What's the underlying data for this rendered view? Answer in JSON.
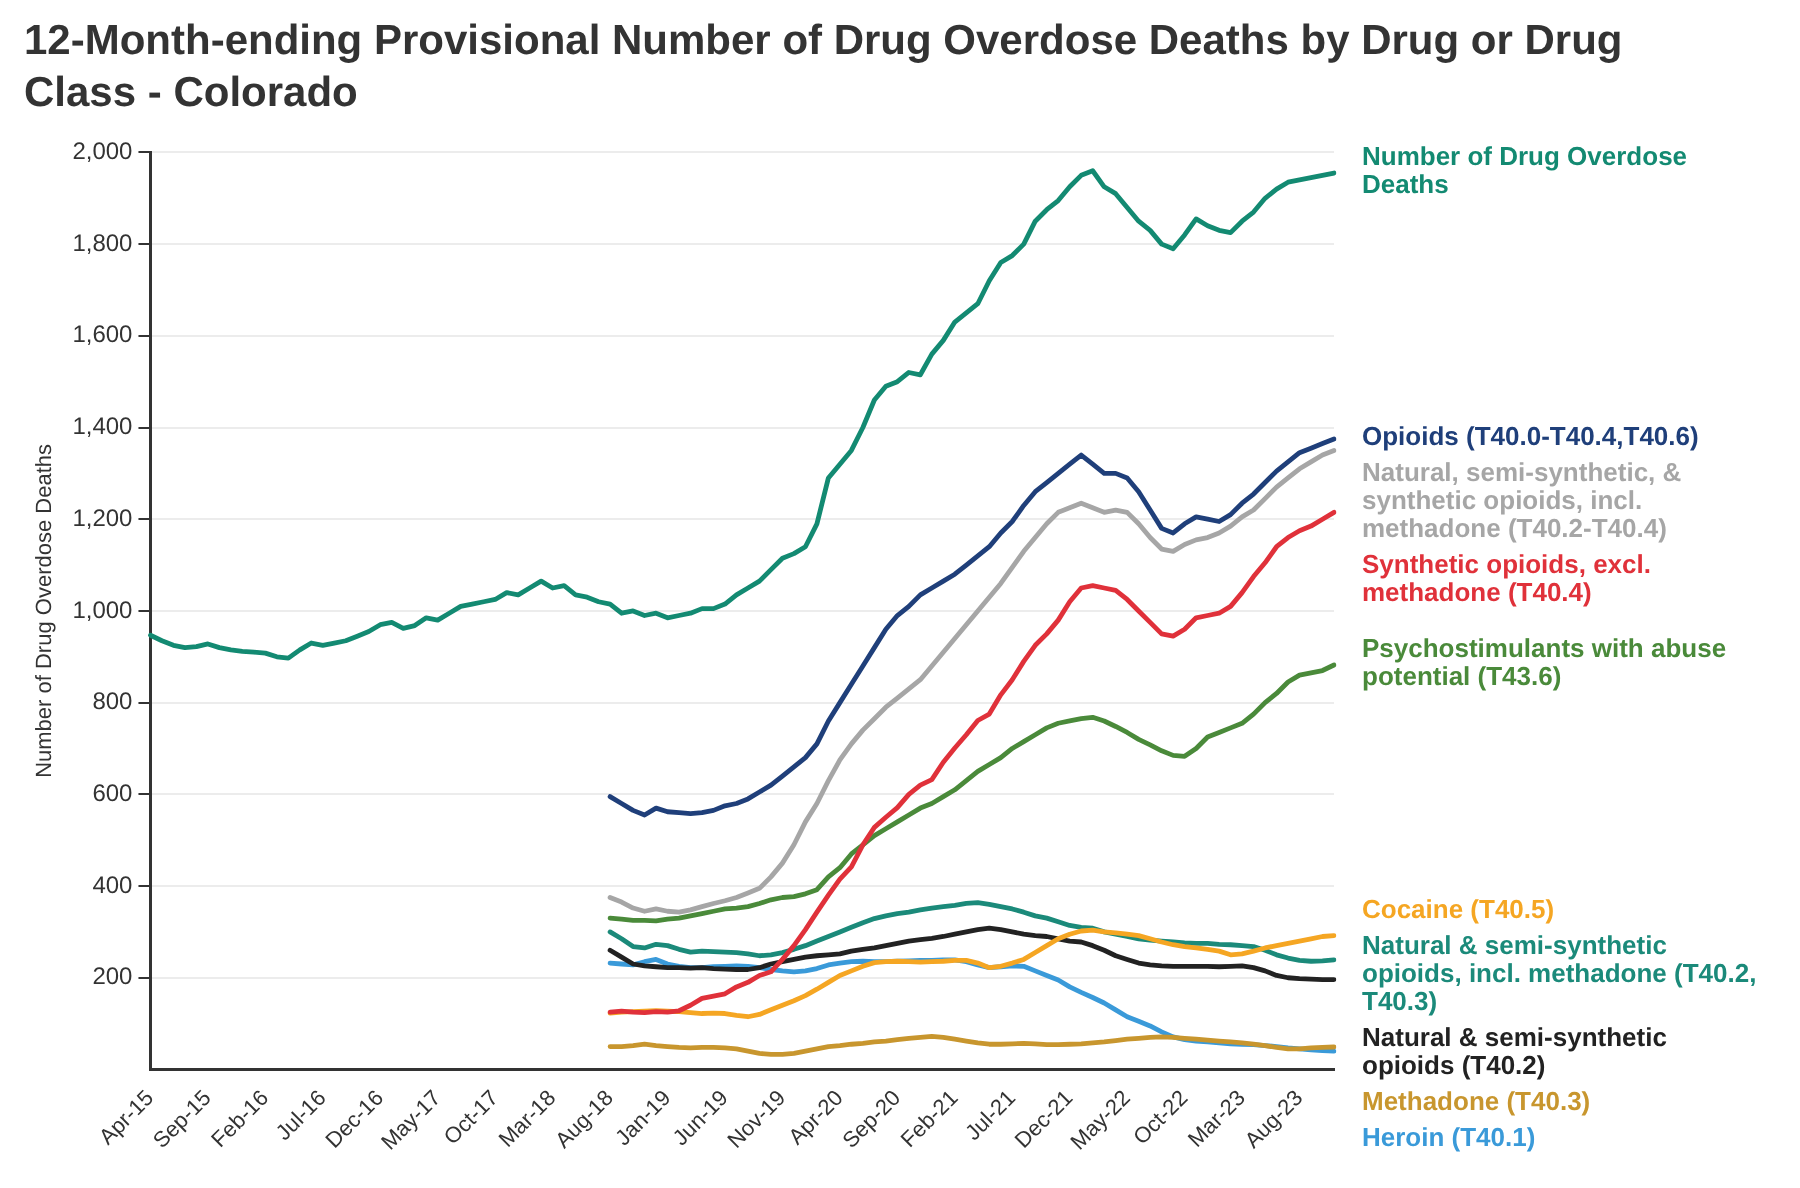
{
  "chart_data": {
    "type": "line",
    "title": "12-Month-ending Provisional Number of Drug Overdose Deaths by Drug or Drug Class - Colorado",
    "ylabel": "Number of Drug Overdose Deaths",
    "categories": [
      "Apr-15",
      null,
      null,
      null,
      null,
      "Sep-15",
      null,
      null,
      null,
      null,
      "Feb-16",
      null,
      null,
      null,
      null,
      "Jul-16",
      null,
      null,
      null,
      null,
      "Dec-16",
      null,
      null,
      null,
      null,
      "May-17",
      null,
      null,
      null,
      null,
      "Oct-17",
      null,
      null,
      null,
      null,
      "Mar-18",
      null,
      null,
      null,
      null,
      "Aug-18",
      null,
      null,
      null,
      null,
      "Jan-19",
      null,
      null,
      null,
      null,
      "Jun-19",
      null,
      null,
      null,
      null,
      "Nov-19",
      null,
      null,
      null,
      null,
      "Apr-20",
      null,
      null,
      null,
      null,
      "Sep-20",
      null,
      null,
      null,
      null,
      "Feb-21",
      null,
      null,
      null,
      null,
      "Jul-21",
      null,
      null,
      null,
      null,
      "Dec-21",
      null,
      null,
      null,
      null,
      "May-22",
      null,
      null,
      null,
      null,
      "Oct-22",
      null,
      null,
      null,
      null,
      "Mar-23",
      null,
      null,
      null,
      null,
      "Aug-23",
      null,
      null,
      null
    ],
    "ylim": [
      0,
      2000
    ],
    "yticks": [
      200,
      400,
      600,
      800,
      {
        "value": 1000,
        "label": "1,000"
      },
      {
        "value": 1200,
        "label": "1,200"
      },
      {
        "value": 1400,
        "label": "1,400"
      },
      {
        "value": 1600,
        "label": "1,600"
      },
      {
        "value": 1800,
        "label": "1,800"
      },
      {
        "value": 2000,
        "label": "2,000"
      }
    ],
    "grid": "y",
    "legend": false,
    "marker": "none",
    "line_style": "solid",
    "series": [
      {
        "name": "Number of Drug Overdose Deaths",
        "color": "#138a72",
        "values": [
          947,
          935,
          925,
          920,
          922,
          928,
          920,
          915,
          912,
          910,
          908,
          900,
          897,
          915,
          930,
          925,
          930,
          935,
          945,
          955,
          970,
          975,
          962,
          968,
          985,
          980,
          995,
          1010,
          1015,
          1020,
          1025,
          1040,
          1035,
          1050,
          1065,
          1050,
          1055,
          1035,
          1030,
          1020,
          1015,
          995,
          1000,
          990,
          995,
          985,
          990,
          995,
          1005,
          1005,
          1015,
          1035,
          1050,
          1065,
          1090,
          1115,
          1125,
          1140,
          1190,
          1290,
          1320,
          1350,
          1400,
          1460,
          1490,
          1500,
          1520,
          1515,
          1560,
          1590,
          1630,
          1650,
          1670,
          1720,
          1760,
          1775,
          1800,
          1850,
          1875,
          1895,
          1925,
          1950,
          1960,
          1925,
          1910,
          1880,
          1850,
          1830,
          1800,
          1790,
          1820,
          1855,
          1840,
          1830,
          1825,
          1850,
          1870,
          1900,
          1920,
          1935,
          1940,
          1945,
          1950,
          1955
        ]
      },
      {
        "name": "Opioids (T40.0-T40.4,T40.6)",
        "color": "#1f3f7a",
        "values": [
          null,
          null,
          null,
          null,
          null,
          null,
          null,
          null,
          null,
          null,
          null,
          null,
          null,
          null,
          null,
          null,
          null,
          null,
          null,
          null,
          null,
          null,
          null,
          null,
          null,
          null,
          null,
          null,
          null,
          null,
          null,
          null,
          null,
          null,
          null,
          null,
          null,
          null,
          null,
          null,
          595,
          580,
          565,
          555,
          570,
          562,
          560,
          558,
          560,
          565,
          575,
          580,
          590,
          605,
          620,
          640,
          660,
          680,
          710,
          760,
          800,
          840,
          880,
          920,
          960,
          990,
          1010,
          1035,
          1050,
          1065,
          1080,
          1100,
          1120,
          1140,
          1170,
          1195,
          1230,
          1260,
          1280,
          1300,
          1320,
          1340,
          1320,
          1300,
          1300,
          1290,
          1260,
          1220,
          1180,
          1170,
          1190,
          1205,
          1200,
          1195,
          1210,
          1235,
          1255,
          1280,
          1305,
          1325,
          1345,
          1355,
          1365,
          1375
        ]
      },
      {
        "name": "Natural, semi-synthetic, & synthetic opioids, incl. methadone (T40.2-T40.4)",
        "color": "#a6a6a6",
        "values": [
          null,
          null,
          null,
          null,
          null,
          null,
          null,
          null,
          null,
          null,
          null,
          null,
          null,
          null,
          null,
          null,
          null,
          null,
          null,
          null,
          null,
          null,
          null,
          null,
          null,
          null,
          null,
          null,
          null,
          null,
          null,
          null,
          null,
          null,
          null,
          null,
          null,
          null,
          null,
          null,
          375,
          365,
          352,
          345,
          350,
          345,
          343,
          348,
          355,
          362,
          368,
          375,
          385,
          395,
          420,
          450,
          490,
          540,
          580,
          630,
          675,
          710,
          740,
          765,
          790,
          810,
          830,
          850,
          880,
          910,
          940,
          970,
          1000,
          1030,
          1060,
          1095,
          1130,
          1160,
          1190,
          1215,
          1225,
          1235,
          1225,
          1215,
          1220,
          1215,
          1190,
          1160,
          1135,
          1130,
          1145,
          1155,
          1160,
          1170,
          1185,
          1205,
          1220,
          1245,
          1270,
          1290,
          1310,
          1325,
          1340,
          1350
        ]
      },
      {
        "name": "Synthetic opioids, excl. methadone (T40.4)",
        "color": "#e0313a",
        "values": [
          null,
          null,
          null,
          null,
          null,
          null,
          null,
          null,
          null,
          null,
          null,
          null,
          null,
          null,
          null,
          null,
          null,
          null,
          null,
          null,
          null,
          null,
          null,
          null,
          null,
          null,
          null,
          null,
          null,
          null,
          null,
          null,
          null,
          null,
          null,
          null,
          null,
          null,
          null,
          null,
          125,
          127,
          125,
          124,
          126,
          125,
          128,
          140,
          155,
          160,
          165,
          180,
          190,
          205,
          213,
          240,
          270,
          305,
          343,
          380,
          415,
          442,
          490,
          528,
          550,
          571,
          600,
          620,
          632,
          670,
          701,
          730,
          761,
          775,
          817,
          850,
          890,
          925,
          950,
          980,
          1020,
          1050,
          1055,
          1050,
          1045,
          1025,
          1000,
          975,
          950,
          945,
          960,
          985,
          990,
          995,
          1010,
          1040,
          1075,
          1105,
          1140,
          1160,
          1175,
          1185,
          1200,
          1215
        ]
      },
      {
        "name": "Psychostimulants with abuse potential (T43.6)",
        "color": "#4a8a3a",
        "values": [
          null,
          null,
          null,
          null,
          null,
          null,
          null,
          null,
          null,
          null,
          null,
          null,
          null,
          null,
          null,
          null,
          null,
          null,
          null,
          null,
          null,
          null,
          null,
          null,
          null,
          null,
          null,
          null,
          null,
          null,
          null,
          null,
          null,
          null,
          null,
          null,
          null,
          null,
          null,
          null,
          330,
          328,
          325,
          325,
          324,
          328,
          330,
          335,
          340,
          345,
          350,
          352,
          355,
          362,
          370,
          375,
          377,
          383,
          392,
          420,
          440,
          470,
          490,
          510,
          525,
          540,
          555,
          570,
          580,
          595,
          610,
          630,
          650,
          665,
          680,
          700,
          715,
          730,
          745,
          755,
          760,
          765,
          768,
          760,
          748,
          735,
          720,
          708,
          695,
          685,
          683,
          700,
          725,
          735,
          745,
          755,
          775,
          800,
          820,
          845,
          860,
          865,
          870,
          882
        ]
      },
      {
        "name": "Cocaine (T40.5)",
        "color": "#f5a623",
        "values": [
          null,
          null,
          null,
          null,
          null,
          null,
          null,
          null,
          null,
          null,
          null,
          null,
          null,
          null,
          null,
          null,
          null,
          null,
          null,
          null,
          null,
          null,
          null,
          null,
          null,
          null,
          null,
          null,
          null,
          null,
          null,
          null,
          null,
          null,
          null,
          null,
          null,
          null,
          null,
          null,
          123,
          125,
          126,
          127,
          128,
          127,
          126,
          124,
          122,
          123,
          122,
          118,
          115,
          120,
          130,
          140,
          150,
          161,
          175,
          190,
          205,
          215,
          225,
          233,
          235,
          236,
          235,
          234,
          235,
          236,
          238,
          238,
          232,
          222,
          225,
          232,
          240,
          255,
          270,
          285,
          295,
          302,
          304,
          300,
          298,
          295,
          292,
          285,
          278,
          272,
          268,
          265,
          262,
          258,
          250,
          252,
          258,
          265,
          270,
          275,
          280,
          285,
          290,
          292
        ]
      },
      {
        "name": "Natural & semi-synthetic opioids, incl. methadone (T40.2, T40.3)",
        "color": "#1b8a7a",
        "values": [
          null,
          null,
          null,
          null,
          null,
          null,
          null,
          null,
          null,
          null,
          null,
          null,
          null,
          null,
          null,
          null,
          null,
          null,
          null,
          null,
          null,
          null,
          null,
          null,
          null,
          null,
          null,
          null,
          null,
          null,
          null,
          null,
          null,
          null,
          null,
          null,
          null,
          null,
          null,
          null,
          300,
          285,
          268,
          265,
          273,
          270,
          262,
          256,
          258,
          257,
          256,
          255,
          252,
          248,
          250,
          255,
          262,
          270,
          280,
          290,
          300,
          310,
          320,
          329,
          335,
          340,
          343,
          348,
          352,
          355,
          358,
          362,
          364,
          360,
          355,
          350,
          343,
          335,
          330,
          322,
          314,
          310,
          308,
          300,
          295,
          290,
          285,
          282,
          280,
          278,
          276,
          275,
          275,
          273,
          272,
          270,
          268,
          260,
          250,
          243,
          238,
          236,
          237,
          239
        ]
      },
      {
        "name": "Natural & semi-synthetic opioids (T40.2)",
        "color": "#222222",
        "values": [
          null,
          null,
          null,
          null,
          null,
          null,
          null,
          null,
          null,
          null,
          null,
          null,
          null,
          null,
          null,
          null,
          null,
          null,
          null,
          null,
          null,
          null,
          null,
          null,
          null,
          null,
          null,
          null,
          null,
          null,
          null,
          null,
          null,
          null,
          null,
          null,
          null,
          null,
          null,
          null,
          260,
          245,
          230,
          226,
          224,
          222,
          222,
          221,
          222,
          220,
          219,
          218,
          218,
          222,
          230,
          235,
          240,
          245,
          248,
          250,
          252,
          258,
          262,
          265,
          270,
          275,
          280,
          283,
          286,
          290,
          295,
          300,
          305,
          308,
          305,
          300,
          295,
          292,
          290,
          285,
          280,
          278,
          270,
          260,
          248,
          240,
          232,
          228,
          226,
          225,
          225,
          225,
          225,
          224,
          225,
          226,
          222,
          215,
          205,
          200,
          198,
          197,
          196,
          196
        ]
      },
      {
        "name": "Methadone (T40.3)",
        "color": "#c8962e",
        "values": [
          null,
          null,
          null,
          null,
          null,
          null,
          null,
          null,
          null,
          null,
          null,
          null,
          null,
          null,
          null,
          null,
          null,
          null,
          null,
          null,
          null,
          null,
          null,
          null,
          null,
          null,
          null,
          null,
          null,
          null,
          null,
          null,
          null,
          null,
          null,
          null,
          null,
          null,
          null,
          null,
          50,
          50,
          52,
          55,
          52,
          50,
          48,
          47,
          48,
          48,
          47,
          45,
          40,
          35,
          33,
          33,
          35,
          40,
          45,
          50,
          52,
          55,
          57,
          60,
          62,
          65,
          68,
          70,
          72,
          70,
          66,
          62,
          58,
          55,
          55,
          56,
          57,
          56,
          54,
          54,
          55,
          56,
          58,
          60,
          63,
          66,
          68,
          70,
          71,
          70,
          68,
          66,
          64,
          62,
          60,
          58,
          55,
          52,
          48,
          45,
          45,
          47,
          48,
          49
        ]
      },
      {
        "name": "Heroin (T40.1)",
        "color": "#3a9ad9",
        "values": [
          null,
          null,
          null,
          null,
          null,
          null,
          null,
          null,
          null,
          null,
          null,
          null,
          null,
          null,
          null,
          null,
          null,
          null,
          null,
          null,
          null,
          null,
          null,
          null,
          null,
          null,
          null,
          null,
          null,
          null,
          null,
          null,
          null,
          null,
          null,
          null,
          null,
          null,
          null,
          null,
          232,
          230,
          228,
          235,
          240,
          230,
          225,
          222,
          222,
          224,
          225,
          226,
          225,
          222,
          218,
          215,
          213,
          215,
          220,
          228,
          232,
          235,
          236,
          235,
          235,
          236,
          237,
          238,
          238,
          239,
          239,
          235,
          228,
          222,
          224,
          226,
          225,
          215,
          205,
          195,
          180,
          168,
          157,
          145,
          130,
          115,
          105,
          95,
          82,
          71,
          65,
          62,
          60,
          58,
          56,
          55,
          54,
          52,
          50,
          47,
          45,
          43,
          41,
          40
        ]
      }
    ]
  }
}
